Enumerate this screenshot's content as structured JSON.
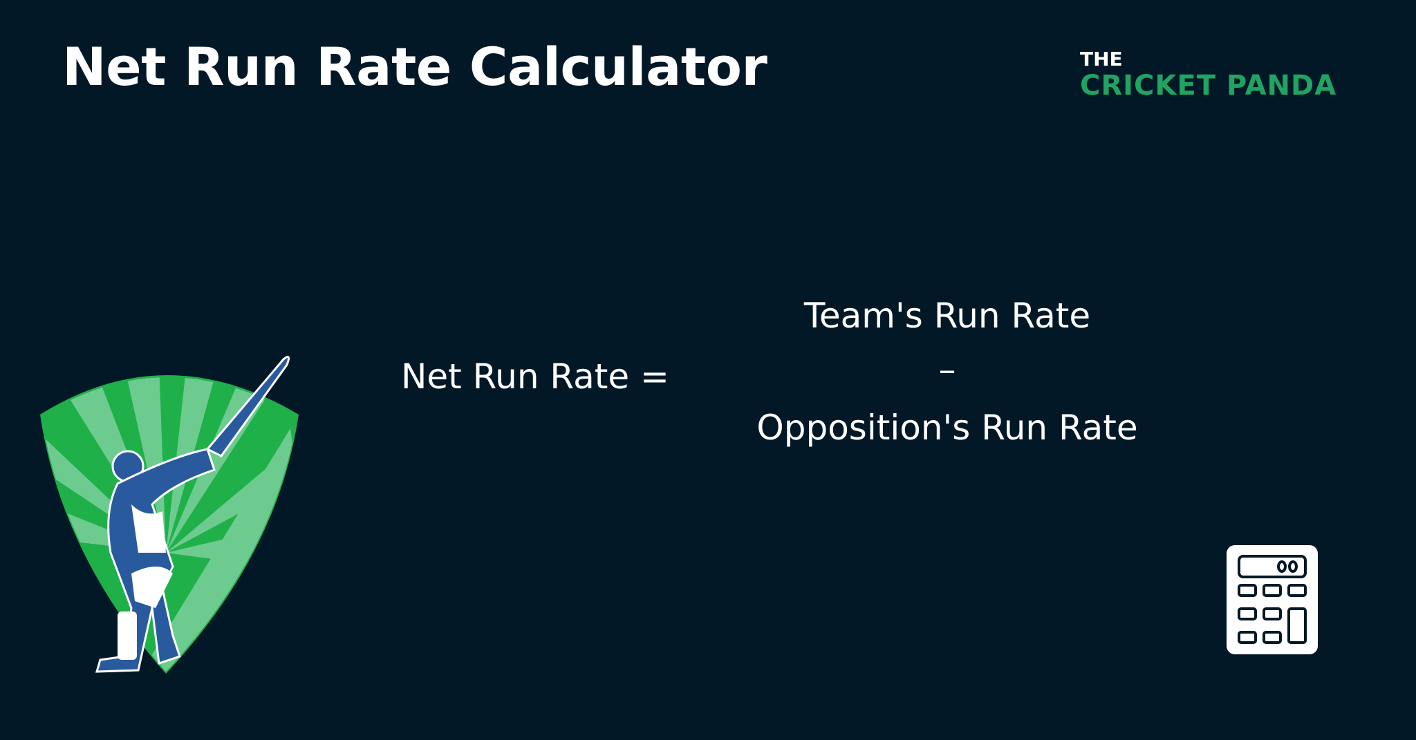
{
  "header": {
    "title": "Net Run Rate Calculator"
  },
  "logo": {
    "line1": "THE",
    "line2": "CRICKET PANDA",
    "brand_color": "#21a463"
  },
  "formula": {
    "lhs": "Net Run Rate =",
    "numerator": "Team's Run Rate",
    "operator": "–",
    "denominator": "Opposition's Run Rate"
  },
  "illustration": {
    "icon": "cricket-batsman-shield-icon"
  },
  "calculator": {
    "icon": "calculator-icon"
  },
  "colors": {
    "background": "#021827",
    "shield_dark": "#1fb04a",
    "shield_light": "#6ecb8f",
    "player_blue": "#2a5a9e"
  }
}
